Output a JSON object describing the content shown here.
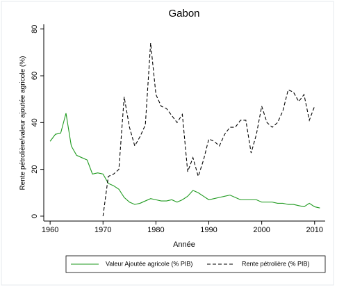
{
  "chart_data": {
    "type": "line",
    "title": "Gabon",
    "xlabel": "Année",
    "ylabel": "Rente pétrolière/valeur ajoutée agricole (%)",
    "x": [
      1960,
      1961,
      1962,
      1963,
      1964,
      1965,
      1966,
      1967,
      1968,
      1969,
      1970,
      1971,
      1972,
      1973,
      1974,
      1975,
      1976,
      1977,
      1978,
      1979,
      1980,
      1981,
      1982,
      1983,
      1984,
      1985,
      1986,
      1987,
      1988,
      1989,
      1990,
      1991,
      1992,
      1993,
      1994,
      1995,
      1996,
      1997,
      1998,
      1999,
      2000,
      2001,
      2002,
      2003,
      2004,
      2005,
      2006,
      2007,
      2008,
      2009,
      2010,
      2011
    ],
    "series": [
      {
        "name": "Valeur Ajoutée agricole (% PIB)",
        "color": "#1f9a1f",
        "dash": false,
        "values": [
          32,
          35,
          35.5,
          44,
          30,
          26,
          25,
          24,
          18,
          18.5,
          18,
          14,
          13,
          11.5,
          8,
          6,
          5,
          5.5,
          6.5,
          7.5,
          7,
          6.5,
          6.5,
          7,
          6,
          7,
          8.5,
          11,
          10,
          8.5,
          7,
          7.5,
          8,
          8.5,
          9,
          8,
          7,
          7,
          7,
          7,
          6,
          6,
          6,
          5.5,
          5.5,
          5,
          5,
          4.5,
          4,
          5.5,
          4,
          3.5
        ]
      },
      {
        "name": "Rente pétrolière (% PIB)",
        "color": "#000000",
        "dash": true,
        "values": [
          null,
          null,
          null,
          null,
          null,
          null,
          null,
          null,
          null,
          null,
          0,
          17,
          18,
          20,
          51,
          38,
          30,
          34,
          39,
          74,
          52,
          47,
          46,
          43,
          40,
          43.5,
          19,
          25,
          17,
          24,
          33,
          32,
          30,
          35,
          38,
          38,
          41,
          41,
          27,
          35,
          47,
          40,
          38,
          40,
          45,
          54,
          53,
          49,
          52,
          41,
          47,
          null
        ]
      }
    ],
    "xlim": [
      1958.8,
      2012
    ],
    "ylim": [
      -2.1,
      82
    ],
    "xticks": [
      1960,
      1970,
      1980,
      1990,
      2000,
      2010
    ],
    "yticks": [
      0,
      20,
      40,
      60,
      80
    ],
    "legend": "bottom"
  }
}
